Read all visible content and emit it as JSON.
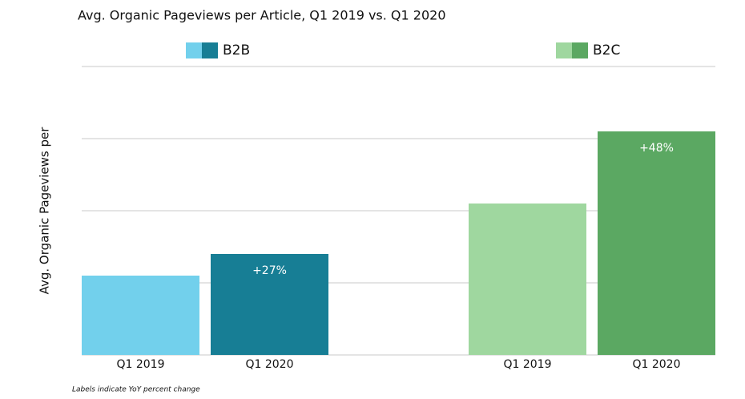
{
  "chart_data": {
    "type": "bar",
    "title": "Avg. Organic Pageviews per Article, Q1  2019 vs. Q1 2020",
    "ylabel": "Avg. Organic Pageviews per",
    "footnote": "Labels indicate YoY percent change",
    "ylim": [
      0,
      4
    ],
    "yticks": [
      0,
      1,
      2,
      3,
      4
    ],
    "grid": true,
    "groups": [
      {
        "name": "B2B",
        "categories": [
          "Q1 2019",
          "Q1 2020"
        ],
        "colors": [
          "#72d0ec",
          "#177e95"
        ],
        "values": [
          1.1,
          1.4
        ],
        "change_label": "+27%"
      },
      {
        "name": "B2C",
        "categories": [
          "Q1 2019",
          "Q1 2020"
        ],
        "colors": [
          "#9fd79f",
          "#5ba862"
        ],
        "values": [
          2.1,
          3.1
        ],
        "change_label": "+48%"
      }
    ]
  }
}
